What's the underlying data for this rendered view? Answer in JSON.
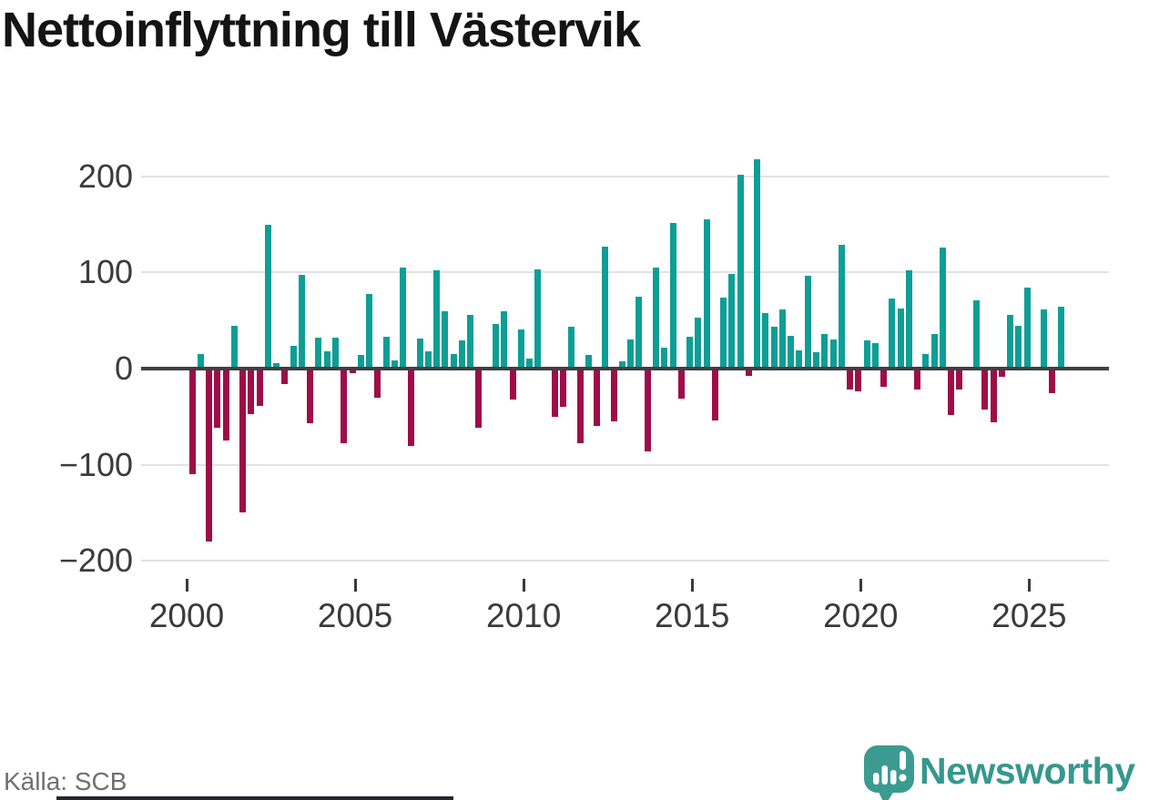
{
  "header": {
    "title": "Nettoinflyttning till Västervik"
  },
  "footer": {
    "source_label": "Källa: SCB",
    "brand_name": "Newsworthy"
  },
  "colors": {
    "positive_bar": "#0d9e96",
    "negative_bar": "#9e0d48",
    "brand_text": "#36978d",
    "brand_icon": "#3c9b91",
    "zero_line": "#3f3f42",
    "gridline": "#e2e2e2",
    "axis_text": "#3a3a3a",
    "title_text": "#141414",
    "source_text": "#6f6f6f"
  },
  "chart_data": {
    "type": "bar",
    "title": "Nettoinflyttning till Västervik",
    "frequency": "quarterly",
    "x_start": "2000 Q1",
    "x_end": "2025 Q4",
    "values": [
      -110,
      15,
      -180,
      -62,
      -75,
      45,
      -150,
      -47,
      -39,
      150,
      6,
      -16,
      24,
      98,
      -57,
      32,
      18,
      32,
      -78,
      -5,
      14,
      78,
      -30,
      33,
      9,
      105,
      -81,
      31,
      18,
      102,
      60,
      15,
      29,
      56,
      -62,
      0,
      46,
      60,
      -32,
      41,
      10,
      103,
      0,
      -50,
      -40,
      44,
      -78,
      14,
      -60,
      127,
      -55,
      8,
      30,
      75,
      -86,
      105,
      22,
      152,
      -31,
      33,
      53,
      155,
      -54,
      74,
      99,
      202,
      -8,
      218,
      58,
      44,
      62,
      34,
      19,
      97,
      17,
      36,
      30,
      129,
      -22,
      -24,
      29,
      27,
      -19,
      73,
      63,
      102,
      -22,
      15,
      36,
      126,
      -48,
      -22,
      0,
      71,
      -43,
      -56,
      -9,
      56,
      45,
      84,
      0,
      62,
      -26,
      64
    ],
    "x_ticks": [
      {
        "year": 2000,
        "label": "2000"
      },
      {
        "year": 2005,
        "label": "2005"
      },
      {
        "year": 2010,
        "label": "2010"
      },
      {
        "year": 2015,
        "label": "2015"
      },
      {
        "year": 2020,
        "label": "2020"
      },
      {
        "year": 2025,
        "label": "2025"
      }
    ],
    "y_ticks": [
      {
        "v": 200,
        "label": "200"
      },
      {
        "v": 100,
        "label": "100"
      },
      {
        "v": 0,
        "label": "0"
      },
      {
        "v": -100,
        "label": "−100"
      },
      {
        "v": -200,
        "label": "−200"
      }
    ],
    "ylim": [
      -200,
      220
    ],
    "grid": "horizontal",
    "legend": "none"
  }
}
